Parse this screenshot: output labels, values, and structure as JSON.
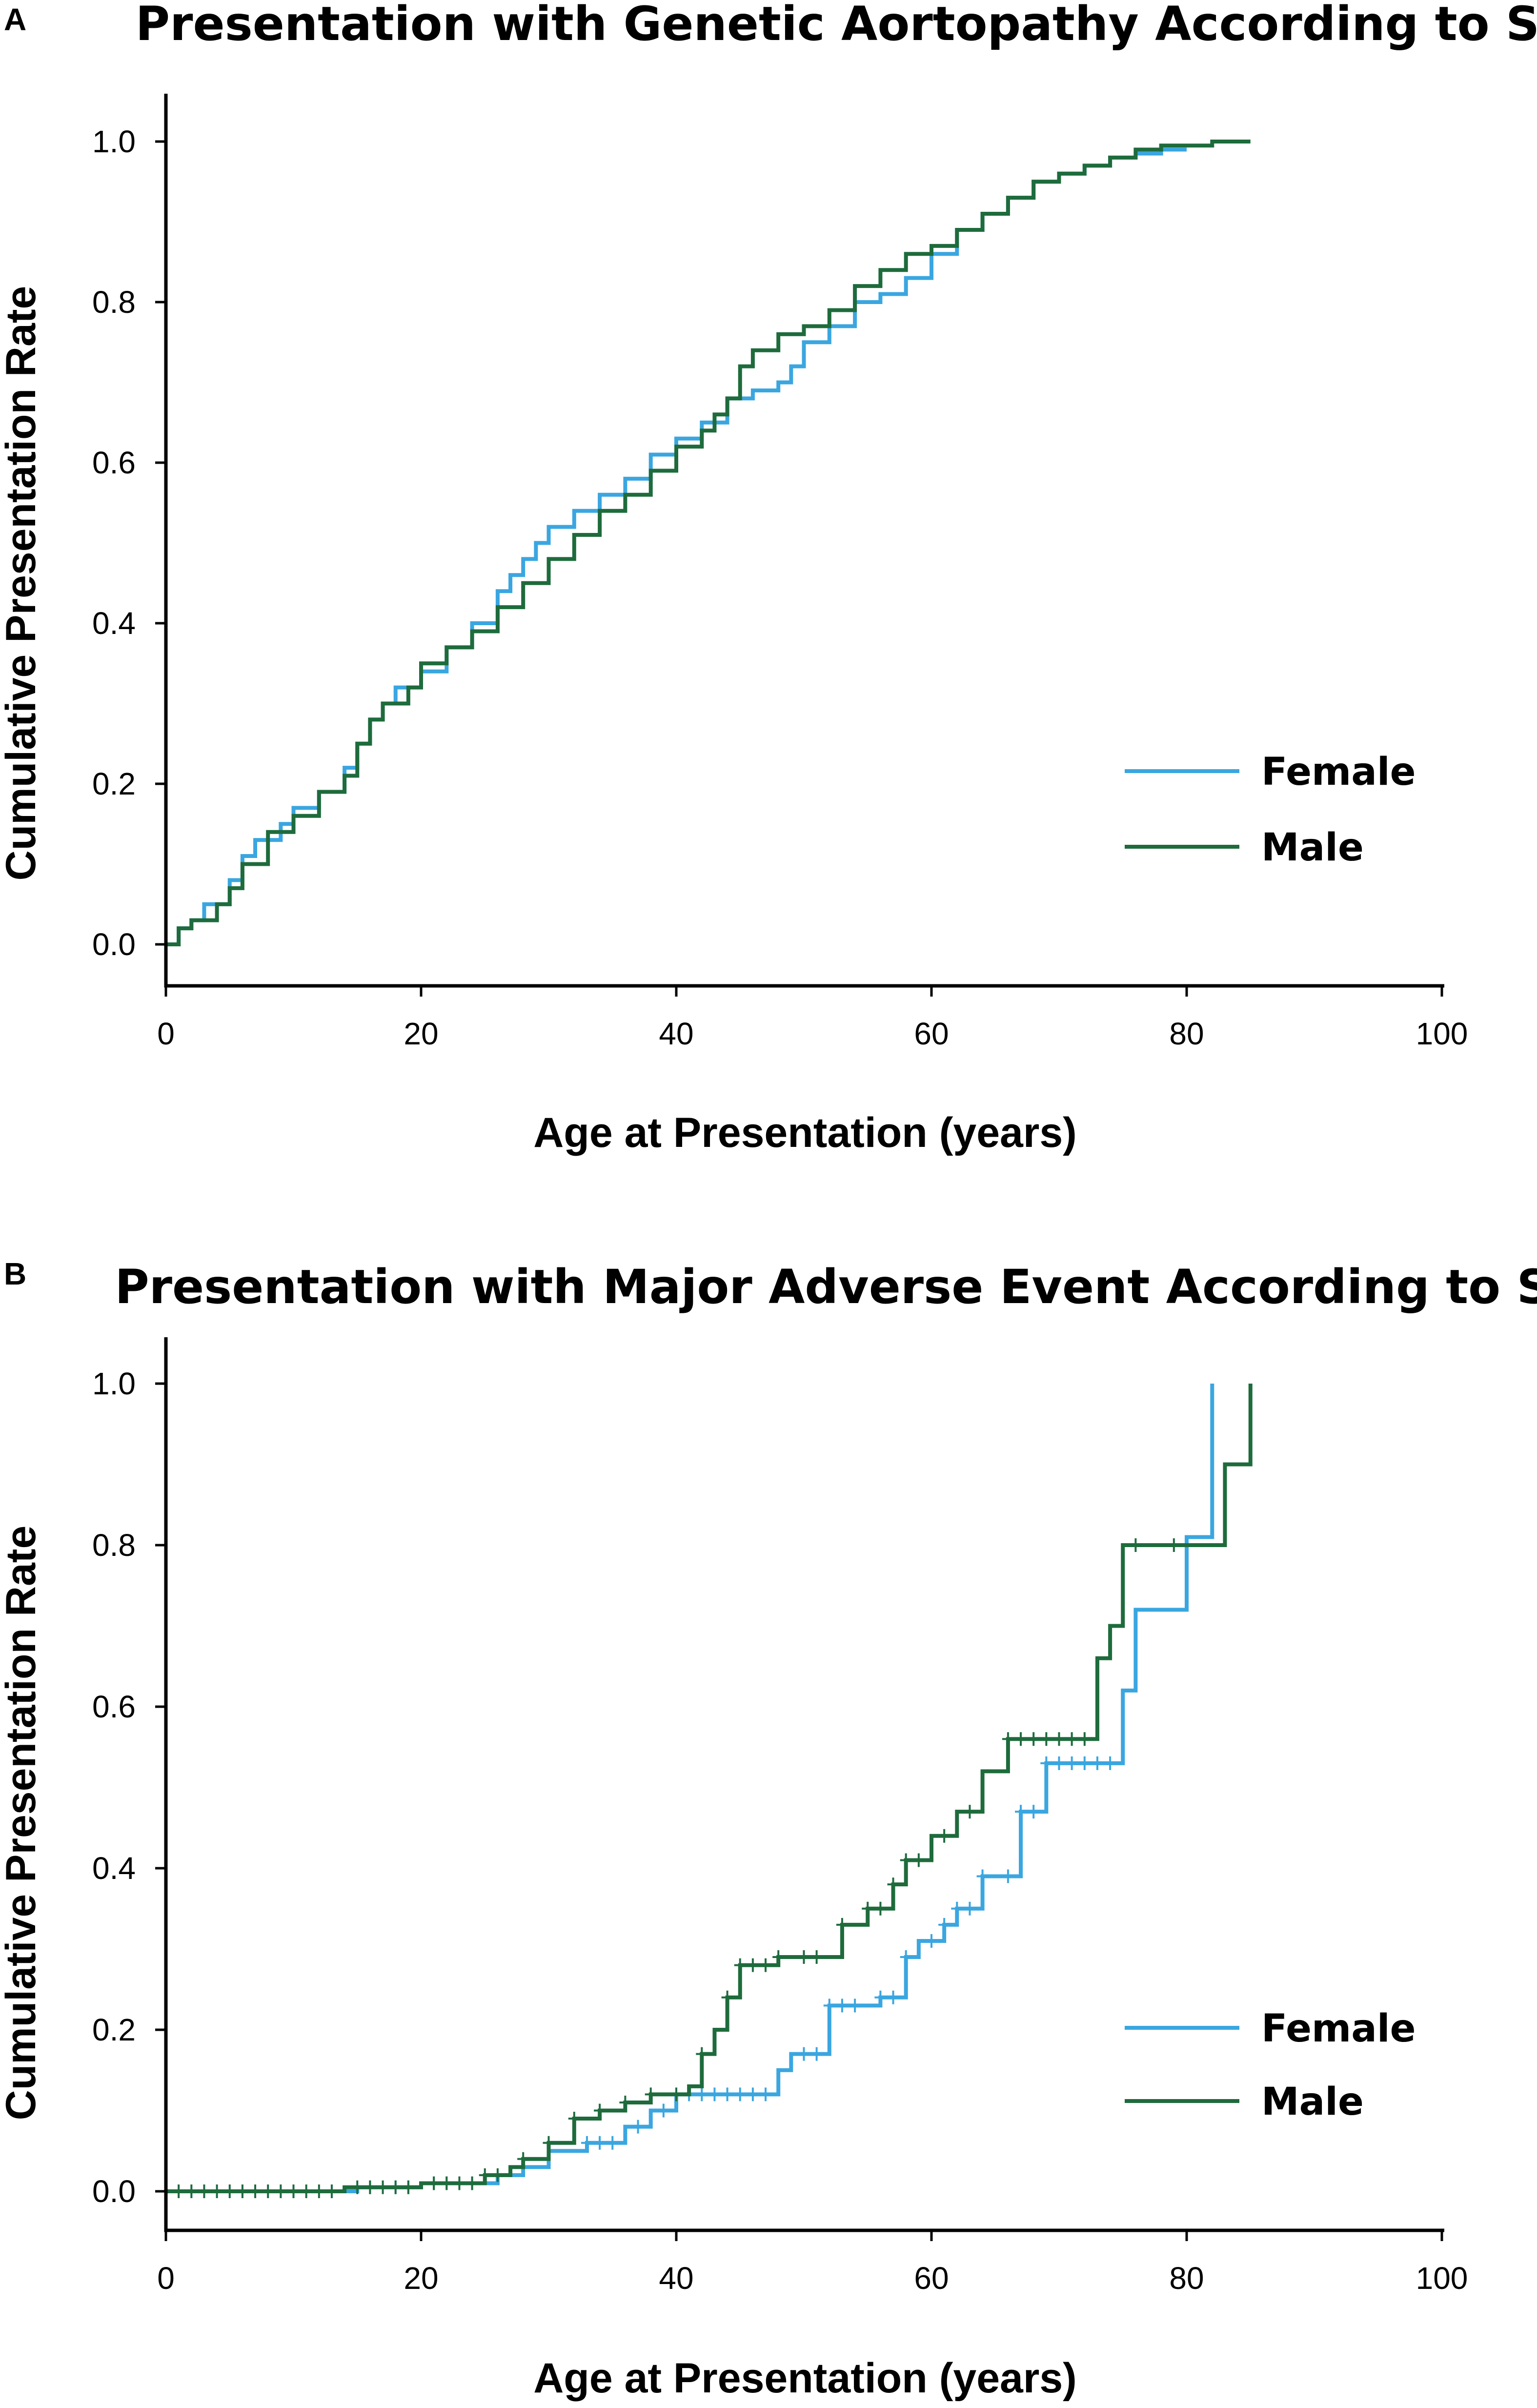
{
  "chart_data": [
    {
      "panel_label": "A",
      "type": "line",
      "step": true,
      "title": "Presentation with Genetic Aortopathy According to Sex",
      "xlabel": "Age at Presentation (years)",
      "ylabel": "Cumulative Presentation Rate",
      "xlim": [
        0,
        100
      ],
      "ylim": [
        0,
        1.0
      ],
      "xticks": [
        "0",
        "20",
        "40",
        "60",
        "80",
        "100"
      ],
      "yticks": [
        "0.0",
        "0.2",
        "0.4",
        "0.6",
        "0.8",
        "1.0"
      ],
      "legend_position": "lower-right",
      "series": [
        {
          "name": "Female",
          "color": "#3AA6E0",
          "x": [
            0,
            1,
            2,
            3,
            5,
            6,
            7,
            9,
            10,
            12,
            14,
            15,
            16,
            17,
            18,
            20,
            22,
            24,
            26,
            27,
            28,
            29,
            30,
            32,
            34,
            36,
            38,
            40,
            42,
            44,
            46,
            48,
            49,
            50,
            52,
            54,
            56,
            58,
            60,
            62,
            64,
            66,
            68,
            70,
            72,
            74,
            76,
            78,
            80
          ],
          "y": [
            0,
            0.02,
            0.03,
            0.05,
            0.08,
            0.11,
            0.13,
            0.15,
            0.17,
            0.19,
            0.22,
            0.25,
            0.28,
            0.3,
            0.32,
            0.34,
            0.37,
            0.4,
            0.44,
            0.46,
            0.48,
            0.5,
            0.52,
            0.54,
            0.56,
            0.58,
            0.61,
            0.63,
            0.65,
            0.68,
            0.69,
            0.7,
            0.72,
            0.75,
            0.77,
            0.8,
            0.81,
            0.83,
            0.86,
            0.89,
            0.91,
            0.93,
            0.95,
            0.96,
            0.97,
            0.98,
            0.985,
            0.99,
            0.99
          ]
        },
        {
          "name": "Male",
          "color": "#1E6B3C",
          "x": [
            0,
            1,
            2,
            4,
            5,
            6,
            8,
            10,
            12,
            14,
            15,
            16,
            17,
            19,
            20,
            22,
            24,
            26,
            28,
            30,
            32,
            34,
            36,
            38,
            40,
            42,
            43,
            44,
            45,
            46,
            48,
            50,
            52,
            54,
            56,
            58,
            60,
            62,
            64,
            66,
            68,
            70,
            72,
            74,
            76,
            78,
            80,
            82,
            85
          ],
          "y": [
            0,
            0.02,
            0.03,
            0.05,
            0.07,
            0.1,
            0.14,
            0.16,
            0.19,
            0.21,
            0.25,
            0.28,
            0.3,
            0.32,
            0.35,
            0.37,
            0.39,
            0.42,
            0.45,
            0.48,
            0.51,
            0.54,
            0.56,
            0.59,
            0.62,
            0.64,
            0.66,
            0.68,
            0.72,
            0.74,
            0.76,
            0.77,
            0.79,
            0.82,
            0.84,
            0.86,
            0.87,
            0.89,
            0.91,
            0.93,
            0.95,
            0.96,
            0.97,
            0.98,
            0.99,
            0.995,
            0.995,
            1.0,
            1.0
          ]
        }
      ]
    },
    {
      "panel_label": "B",
      "type": "line",
      "step": true,
      "title": "Presentation with Major Adverse Event According to Sex",
      "xlabel": "Age at Presentation (years)",
      "ylabel": "Cumulative Presentation Rate",
      "xlim": [
        0,
        100
      ],
      "ylim": [
        0,
        1.0
      ],
      "xticks": [
        "0",
        "20",
        "40",
        "60",
        "80",
        "100"
      ],
      "yticks": [
        "0.0",
        "0.2",
        "0.4",
        "0.6",
        "0.8",
        "1.0"
      ],
      "legend_position": "lower-right",
      "series": [
        {
          "name": "Female",
          "color": "#3AA6E0",
          "x": [
            0,
            15,
            20,
            26,
            28,
            30,
            33,
            36,
            38,
            40,
            48,
            49,
            52,
            56,
            58,
            59,
            61,
            62,
            64,
            67,
            69,
            75,
            76,
            80,
            82
          ],
          "y": [
            0,
            0.005,
            0.01,
            0.02,
            0.03,
            0.05,
            0.06,
            0.08,
            0.1,
            0.12,
            0.15,
            0.17,
            0.23,
            0.24,
            0.29,
            0.31,
            0.33,
            0.35,
            0.39,
            0.47,
            0.53,
            0.62,
            0.72,
            0.81,
            1.0
          ]
        },
        {
          "name": "Male",
          "color": "#1E6B3C",
          "x": [
            0,
            14,
            20,
            25,
            27,
            28,
            30,
            32,
            34,
            36,
            38,
            41,
            42,
            43,
            44,
            45,
            46,
            48,
            53,
            55,
            57,
            58,
            60,
            62,
            64,
            66,
            73,
            74,
            75,
            83,
            85
          ],
          "y": [
            0,
            0.005,
            0.01,
            0.02,
            0.03,
            0.04,
            0.06,
            0.09,
            0.1,
            0.11,
            0.12,
            0.13,
            0.17,
            0.2,
            0.24,
            0.28,
            0.28,
            0.29,
            0.33,
            0.35,
            0.38,
            0.41,
            0.44,
            0.47,
            0.52,
            0.56,
            0.66,
            0.7,
            0.8,
            0.9,
            1.0
          ]
        }
      ]
    }
  ]
}
